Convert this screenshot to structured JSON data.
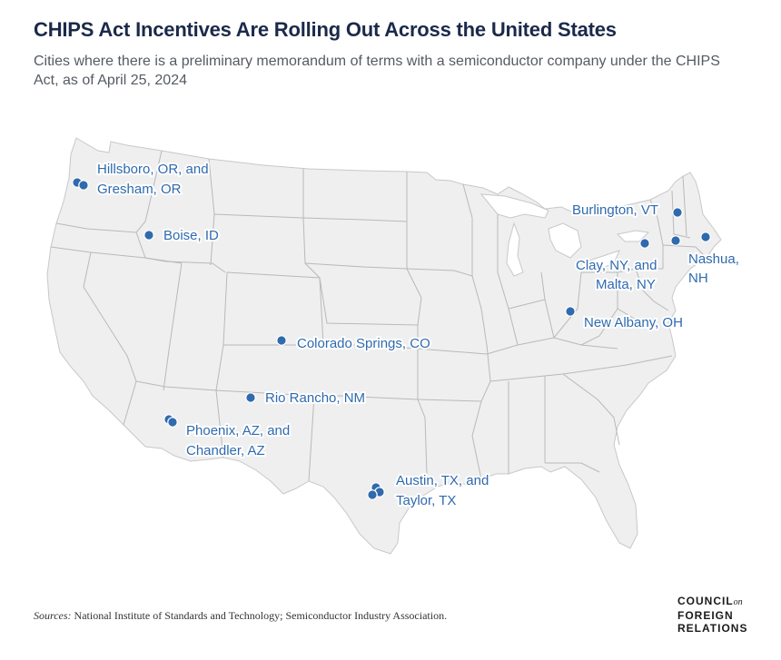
{
  "title": "CHIPS Act Incentives Are Rolling Out Across the United States",
  "subtitle": "Cities where there is a preliminary memorandum of terms with a semiconductor company under the CHIPS Act, as of April 25, 2024",
  "colors": {
    "land": "#efefef",
    "borders": "#b9b9b9",
    "marker": "#2f6aae",
    "label": "#2f6aae",
    "title": "#1b2a4a"
  },
  "cities": [
    {
      "id": "hillsboro",
      "label_lines": [
        "Hillsboro, OR, and",
        "Gresham, OR"
      ],
      "points": 2
    },
    {
      "id": "boise",
      "label_lines": [
        "Boise, ID"
      ],
      "points": 1
    },
    {
      "id": "colorado-springs",
      "label_lines": [
        "Colorado Springs, CO"
      ],
      "points": 1
    },
    {
      "id": "rio-rancho",
      "label_lines": [
        "Rio Rancho, NM"
      ],
      "points": 1
    },
    {
      "id": "phoenix",
      "label_lines": [
        "Phoenix, AZ, and",
        "Chandler, AZ"
      ],
      "points": 2
    },
    {
      "id": "austin",
      "label_lines": [
        "Austin, TX, and",
        "Taylor, TX"
      ],
      "points": 2
    },
    {
      "id": "new-albany",
      "label_lines": [
        "New Albany, OH"
      ],
      "points": 1
    },
    {
      "id": "clay",
      "label_lines": [
        "Clay, NY, and",
        "Malta, NY"
      ],
      "points": 2
    },
    {
      "id": "burlington",
      "label_lines": [
        "Burlington, VT"
      ],
      "points": 1
    },
    {
      "id": "nashua",
      "label_lines": [
        "Nashua,",
        "NH"
      ],
      "points": 1
    }
  ],
  "footer": {
    "sources_label": "Sources:",
    "sources_text": " National Institute of Standards and Technology; Semiconductor Industry Association."
  },
  "logo": {
    "line1": "COUNCIL",
    "line1_suffix": "on",
    "line2": "FOREIGN",
    "line3": "RELATIONS"
  }
}
